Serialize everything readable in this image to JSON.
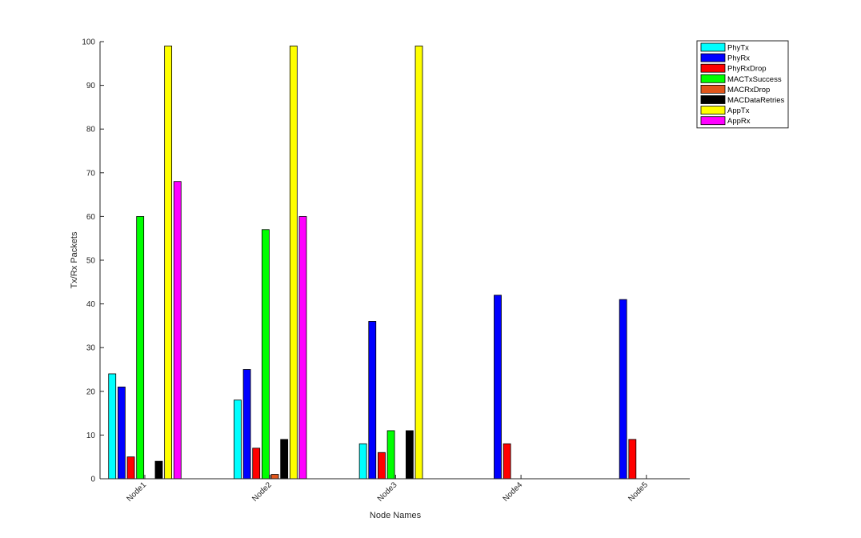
{
  "chart_data": {
    "type": "bar",
    "title": "",
    "xlabel": "Node Names",
    "ylabel": "Tx/Rx Packets",
    "ylim": [
      0,
      100
    ],
    "yticks": [
      0,
      10,
      20,
      30,
      40,
      50,
      60,
      70,
      80,
      90,
      100
    ],
    "categories": [
      "Node1",
      "Node2",
      "Node3",
      "Node4",
      "Node5"
    ],
    "grid": false,
    "legend_position": "top-right",
    "series": [
      {
        "name": "PhyTx",
        "color": "#00FFFF",
        "values": [
          24,
          18,
          8,
          0,
          0
        ]
      },
      {
        "name": "PhyRx",
        "color": "#0000FF",
        "values": [
          21,
          25,
          36,
          42,
          41
        ]
      },
      {
        "name": "PhyRxDrop",
        "color": "#FF0000",
        "values": [
          5,
          7,
          6,
          8,
          9
        ]
      },
      {
        "name": "MACTxSuccess",
        "color": "#00FF00",
        "values": [
          60,
          57,
          11,
          0,
          0
        ]
      },
      {
        "name": "MACRxDrop",
        "color": "#E0561B",
        "values": [
          0,
          1,
          0,
          0,
          0
        ]
      },
      {
        "name": "MACDataRetries",
        "color": "#000000",
        "values": [
          4,
          9,
          11,
          0,
          0
        ]
      },
      {
        "name": "AppTx",
        "color": "#FFFF00",
        "values": [
          99,
          99,
          99,
          0,
          0
        ]
      },
      {
        "name": "AppRx",
        "color": "#FF00FF",
        "values": [
          68,
          60,
          0,
          0,
          0
        ]
      }
    ]
  }
}
